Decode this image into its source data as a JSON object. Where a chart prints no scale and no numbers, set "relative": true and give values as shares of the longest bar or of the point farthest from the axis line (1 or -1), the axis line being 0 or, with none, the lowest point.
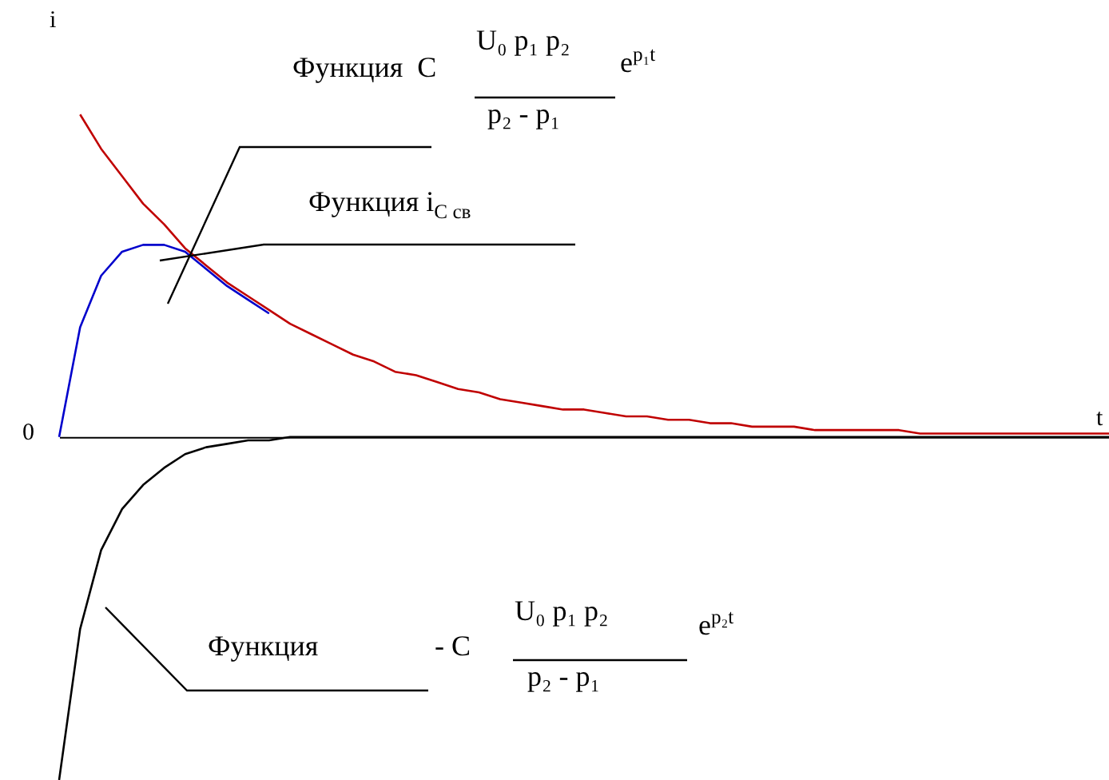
{
  "chart_data": {
    "type": "line",
    "relative": true,
    "xlabel": "t",
    "ylabel": "i",
    "categories": [
      null,
      null,
      null,
      null,
      null,
      null,
      null,
      null,
      null,
      null,
      null,
      null,
      null,
      null,
      null,
      null,
      null,
      null,
      null,
      null,
      null,
      null,
      null,
      null,
      null,
      null,
      null,
      null,
      null,
      null,
      null,
      null,
      null,
      null,
      null,
      null,
      null,
      null,
      null,
      null,
      null,
      null,
      null,
      null,
      null,
      null,
      null,
      null,
      null,
      null,
      null
    ],
    "series": [
      {
        "color": "#c00000",
        "values": [
          null,
          0.94,
          0.84,
          0.76,
          0.68,
          0.62,
          0.55,
          0.5,
          0.45,
          0.41,
          0.37,
          0.33,
          0.3,
          0.27,
          0.24,
          0.22,
          0.19,
          0.18,
          0.16,
          0.14,
          0.13,
          0.11,
          0.1,
          0.09,
          0.08,
          0.08,
          0.07,
          0.06,
          0.06,
          0.05,
          0.05,
          0.04,
          0.04,
          0.03,
          0.03,
          0.03,
          0.02,
          0.02,
          0.02,
          0.02,
          0.02,
          0.01,
          0.01,
          0.01,
          0.01,
          0.01,
          0.01,
          0.01,
          0.01,
          0.01,
          0.01
        ]
      },
      {
        "color": "#0000cc",
        "values": [
          0,
          0.32,
          0.47,
          0.54,
          0.56,
          0.56,
          0.54,
          0.49,
          0.44,
          0.4,
          0.36,
          null,
          null,
          null,
          null,
          null,
          null,
          null,
          null,
          null,
          null,
          null,
          null,
          null,
          null,
          null,
          null,
          null,
          null,
          null,
          null,
          null,
          null,
          null,
          null,
          null,
          null,
          null,
          null,
          null,
          null,
          null,
          null,
          null,
          null,
          null,
          null,
          null,
          null,
          null,
          null
        ]
      },
      {
        "color": "#000000",
        "values": [
          -1,
          -0.56,
          -0.33,
          -0.21,
          -0.14,
          -0.09,
          -0.05,
          -0.03,
          -0.02,
          -0.01,
          -0.01,
          0,
          0,
          0,
          0,
          0,
          0,
          0,
          0,
          0,
          0,
          0,
          0,
          0,
          0,
          0,
          0,
          0,
          0,
          0,
          0,
          0,
          0,
          0,
          0,
          0,
          0,
          0,
          0,
          0,
          0,
          0,
          0,
          0,
          0,
          0,
          0,
          0,
          0,
          0,
          0
        ]
      }
    ],
    "annotations": [
      "Функция  C",
      "U₀ p₁ p₂",
      "p₂ - p₁",
      "e$^{p₁t}$",
      "Функция i$_{C св}$",
      "0",
      "Функция",
      "- C",
      "U₀ p₁ p₂",
      "p₂ - p₁",
      "e$^{p₂t}$"
    ]
  }
}
